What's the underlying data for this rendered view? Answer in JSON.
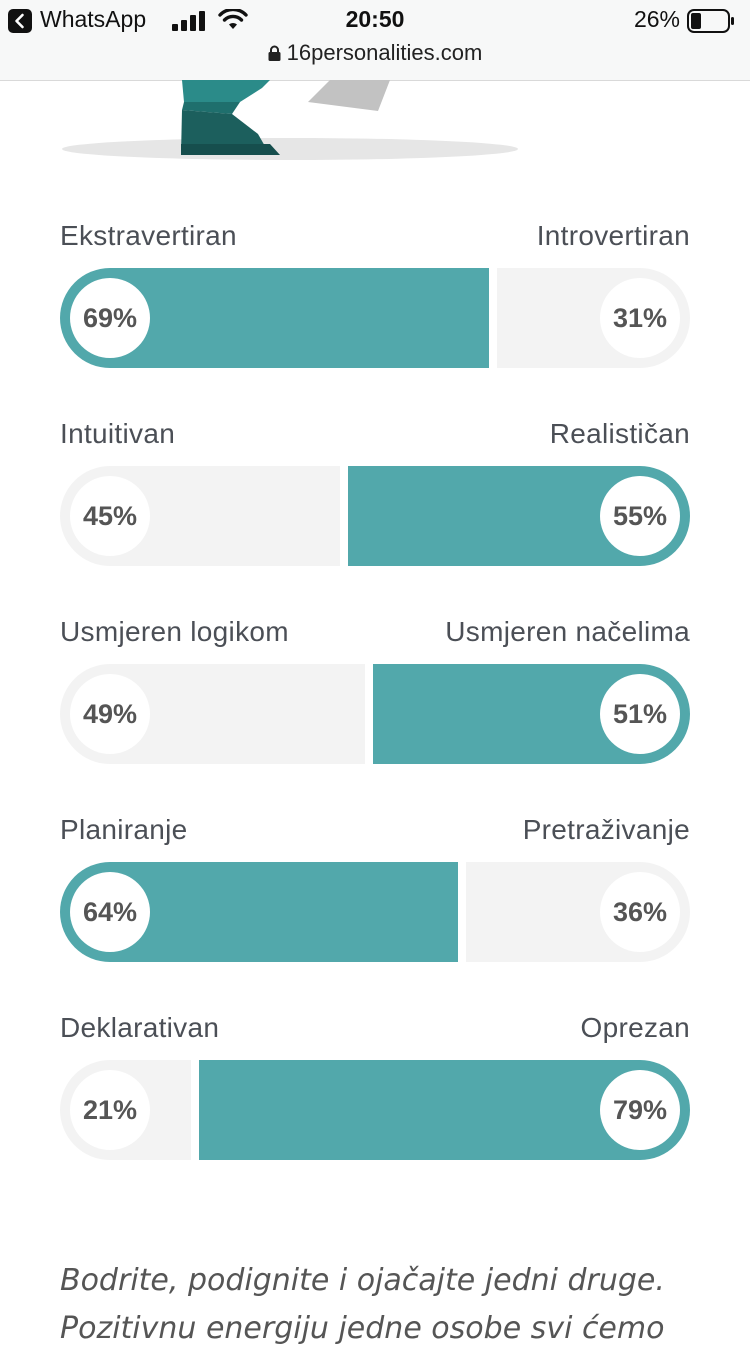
{
  "status_bar": {
    "back_app": "WhatsApp",
    "time": "20:50",
    "battery": "26%",
    "url": "16personalities.com"
  },
  "colors": {
    "accent": "#52a8ab",
    "track": "#f3f3f3",
    "text": "#4b4f56"
  },
  "traits": [
    {
      "left": "Ekstravertiran",
      "right": "Introvertiran",
      "left_pct": 69,
      "right_pct": 31,
      "left_label": "69%",
      "right_label": "31%",
      "dominant": "left"
    },
    {
      "left": "Intuitivan",
      "right": "Realističan",
      "left_pct": 45,
      "right_pct": 55,
      "left_label": "45%",
      "right_label": "55%",
      "dominant": "right"
    },
    {
      "left": "Usmjeren logikom",
      "right": "Usmjeren načelima",
      "left_pct": 49,
      "right_pct": 51,
      "left_label": "49%",
      "right_label": "51%",
      "dominant": "right"
    },
    {
      "left": "Planiranje",
      "right": "Pretraživanje",
      "left_pct": 64,
      "right_pct": 36,
      "left_label": "64%",
      "right_label": "36%",
      "dominant": "left"
    },
    {
      "left": "Deklarativan",
      "right": "Oprezan",
      "left_pct": 21,
      "right_pct": 79,
      "left_label": "21%",
      "right_label": "79%",
      "dominant": "right"
    }
  ],
  "quote": {
    "line1": "Bodrite, podignite i ojačajte jedni druge.",
    "line2": "Pozitivnu energiju jedne osobe svi ćemo"
  }
}
